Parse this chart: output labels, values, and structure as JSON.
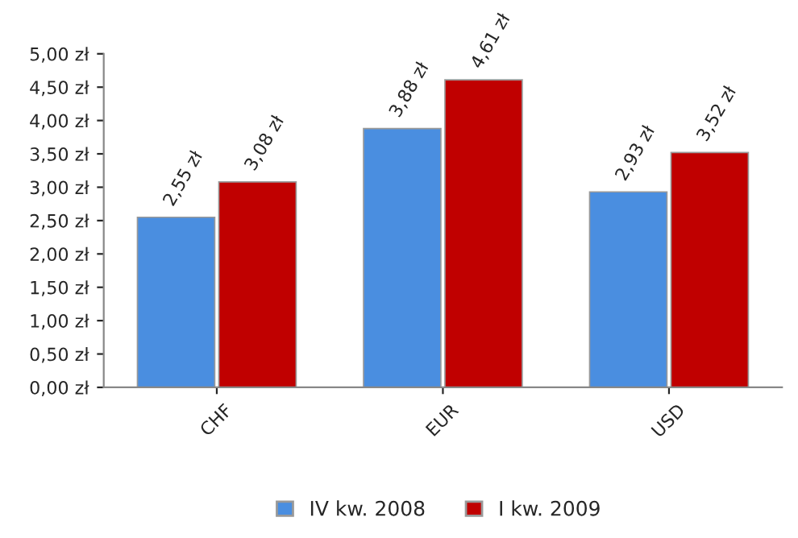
{
  "chart_data": {
    "type": "bar",
    "categories": [
      "CHF",
      "EUR",
      "USD"
    ],
    "series": [
      {
        "name": "IV kw. 2008",
        "color": "#4a8ee0",
        "values": [
          2.55,
          3.88,
          2.93
        ],
        "value_labels": [
          "2,55 zł",
          "3,88 zł",
          "2,93 zł"
        ]
      },
      {
        "name": "I kw. 2009",
        "color": "#c00000",
        "values": [
          3.08,
          4.61,
          3.52
        ],
        "value_labels": [
          "3,08 zł",
          "4,61 zł",
          "3,52 zł"
        ]
      }
    ],
    "ylim": [
      0,
      5
    ],
    "yticks": [
      {
        "value": 0,
        "label": "0,00 zł"
      },
      {
        "value": 0.5,
        "label": "0,50 zł"
      },
      {
        "value": 1,
        "label": "1,00 zł"
      },
      {
        "value": 1.5,
        "label": "1,50 zł"
      },
      {
        "value": 2,
        "label": "2,00 zł"
      },
      {
        "value": 2.5,
        "label": "2,50 zł"
      },
      {
        "value": 3,
        "label": "3,00 zł"
      },
      {
        "value": 3.5,
        "label": "3,50 zł"
      },
      {
        "value": 4,
        "label": "4,00 zł"
      },
      {
        "value": 4.5,
        "label": "4,50 zł"
      },
      {
        "value": 5,
        "label": "5,00 zł"
      }
    ],
    "grid": false,
    "legend": "bottom"
  }
}
